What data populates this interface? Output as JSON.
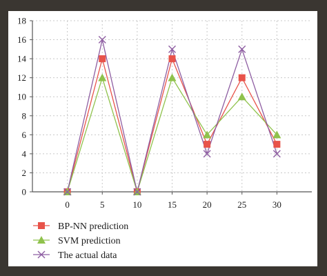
{
  "chart_data": {
    "type": "line",
    "title": "",
    "xlabel": "",
    "ylabel": "",
    "x": [
      0,
      5,
      10,
      15,
      20,
      25,
      30
    ],
    "xlim": [
      -5,
      35
    ],
    "ylim": [
      0,
      18
    ],
    "xticks": [
      "0",
      "5",
      "10",
      "15",
      "20",
      "25",
      "30"
    ],
    "yticks": [
      "0",
      "2",
      "4",
      "6",
      "8",
      "10",
      "12",
      "14",
      "16",
      "18"
    ],
    "grid": true,
    "legend_position": "bottom-left",
    "series": [
      {
        "name": "BP-NN prediction",
        "values": [
          0,
          14,
          0,
          14,
          5,
          12,
          5
        ],
        "color": "#e8534a",
        "marker": "square"
      },
      {
        "name": "SVM prediction",
        "values": [
          0,
          12,
          0,
          12,
          6,
          10,
          6
        ],
        "color": "#8fc24c",
        "marker": "triangle"
      },
      {
        "name": "The actual data",
        "values": [
          0,
          16,
          0,
          15,
          4,
          15,
          4
        ],
        "color": "#8e5ea2",
        "marker": "x"
      }
    ]
  }
}
